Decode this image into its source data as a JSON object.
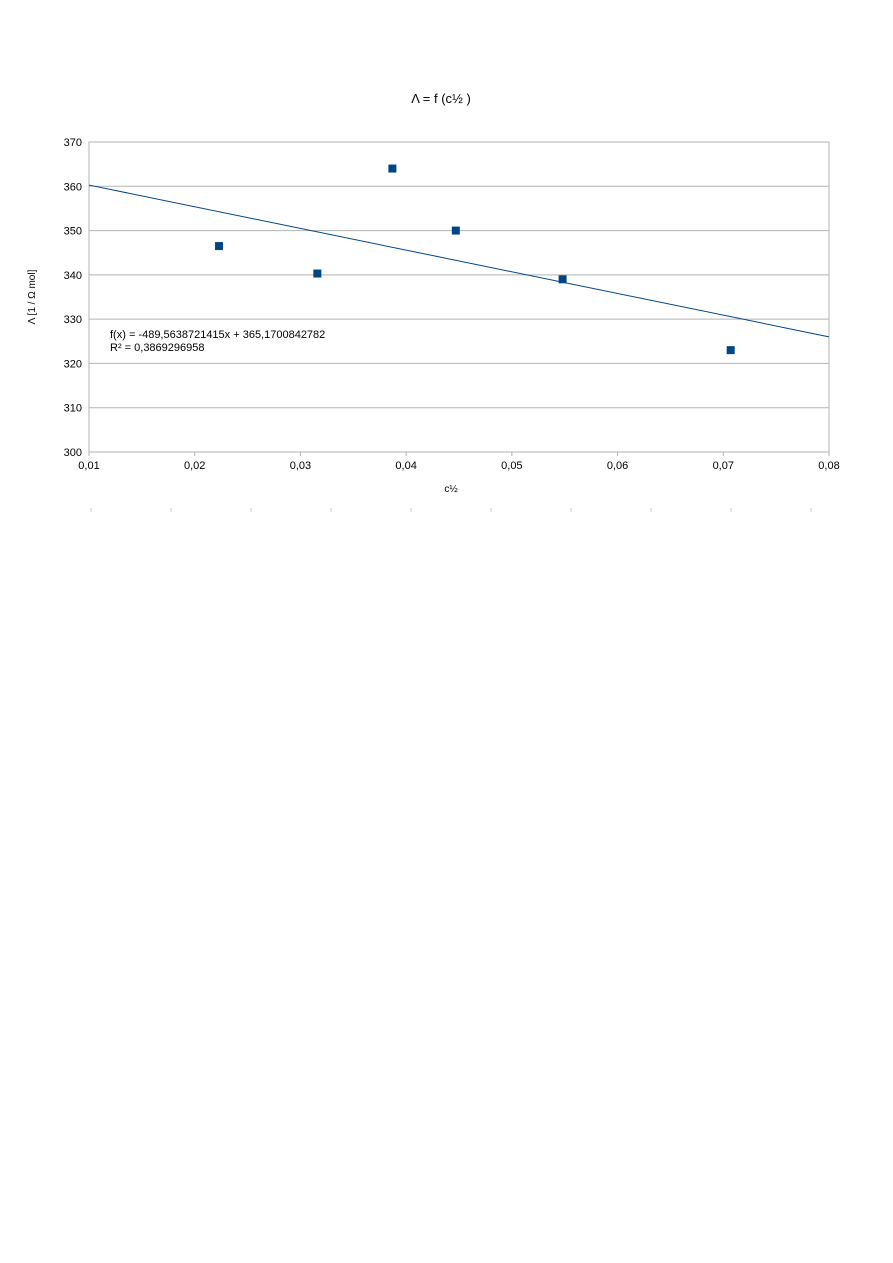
{
  "chart_data": {
    "type": "scatter",
    "title": "Λ = f (c½ )",
    "xlabel": "c½",
    "ylabel": "Λ [1 / Ω mol]",
    "xlim": [
      0.01,
      0.08
    ],
    "ylim": [
      300,
      370
    ],
    "x_ticks": [
      "0,01",
      "0,02",
      "0,03",
      "0,04",
      "0,05",
      "0,06",
      "0,07",
      "0,08"
    ],
    "y_ticks": [
      "300",
      "310",
      "320",
      "330",
      "340",
      "350",
      "360",
      "370"
    ],
    "x_tick_values": [
      0.01,
      0.02,
      0.03,
      0.04,
      0.05,
      0.06,
      0.07,
      0.08
    ],
    "y_tick_values": [
      300,
      310,
      320,
      330,
      340,
      350,
      360,
      370
    ],
    "grid": "horizontal",
    "legend": "none",
    "series": [
      {
        "x": [
          0.0223,
          0.0316,
          0.0387,
          0.0447,
          0.0548,
          0.0707
        ],
        "y": [
          346.5,
          340.3,
          364.0,
          350.0,
          339.0,
          323.0
        ],
        "marker": "square",
        "color": "#004586"
      }
    ],
    "trendline": {
      "slope": -489.5638721415,
      "intercept": 365.1700842782,
      "color": "#004586"
    },
    "annotations": [
      "f(x) = -489,5638721415x + 365,1700842782",
      "R² = 0,3869296958"
    ]
  }
}
